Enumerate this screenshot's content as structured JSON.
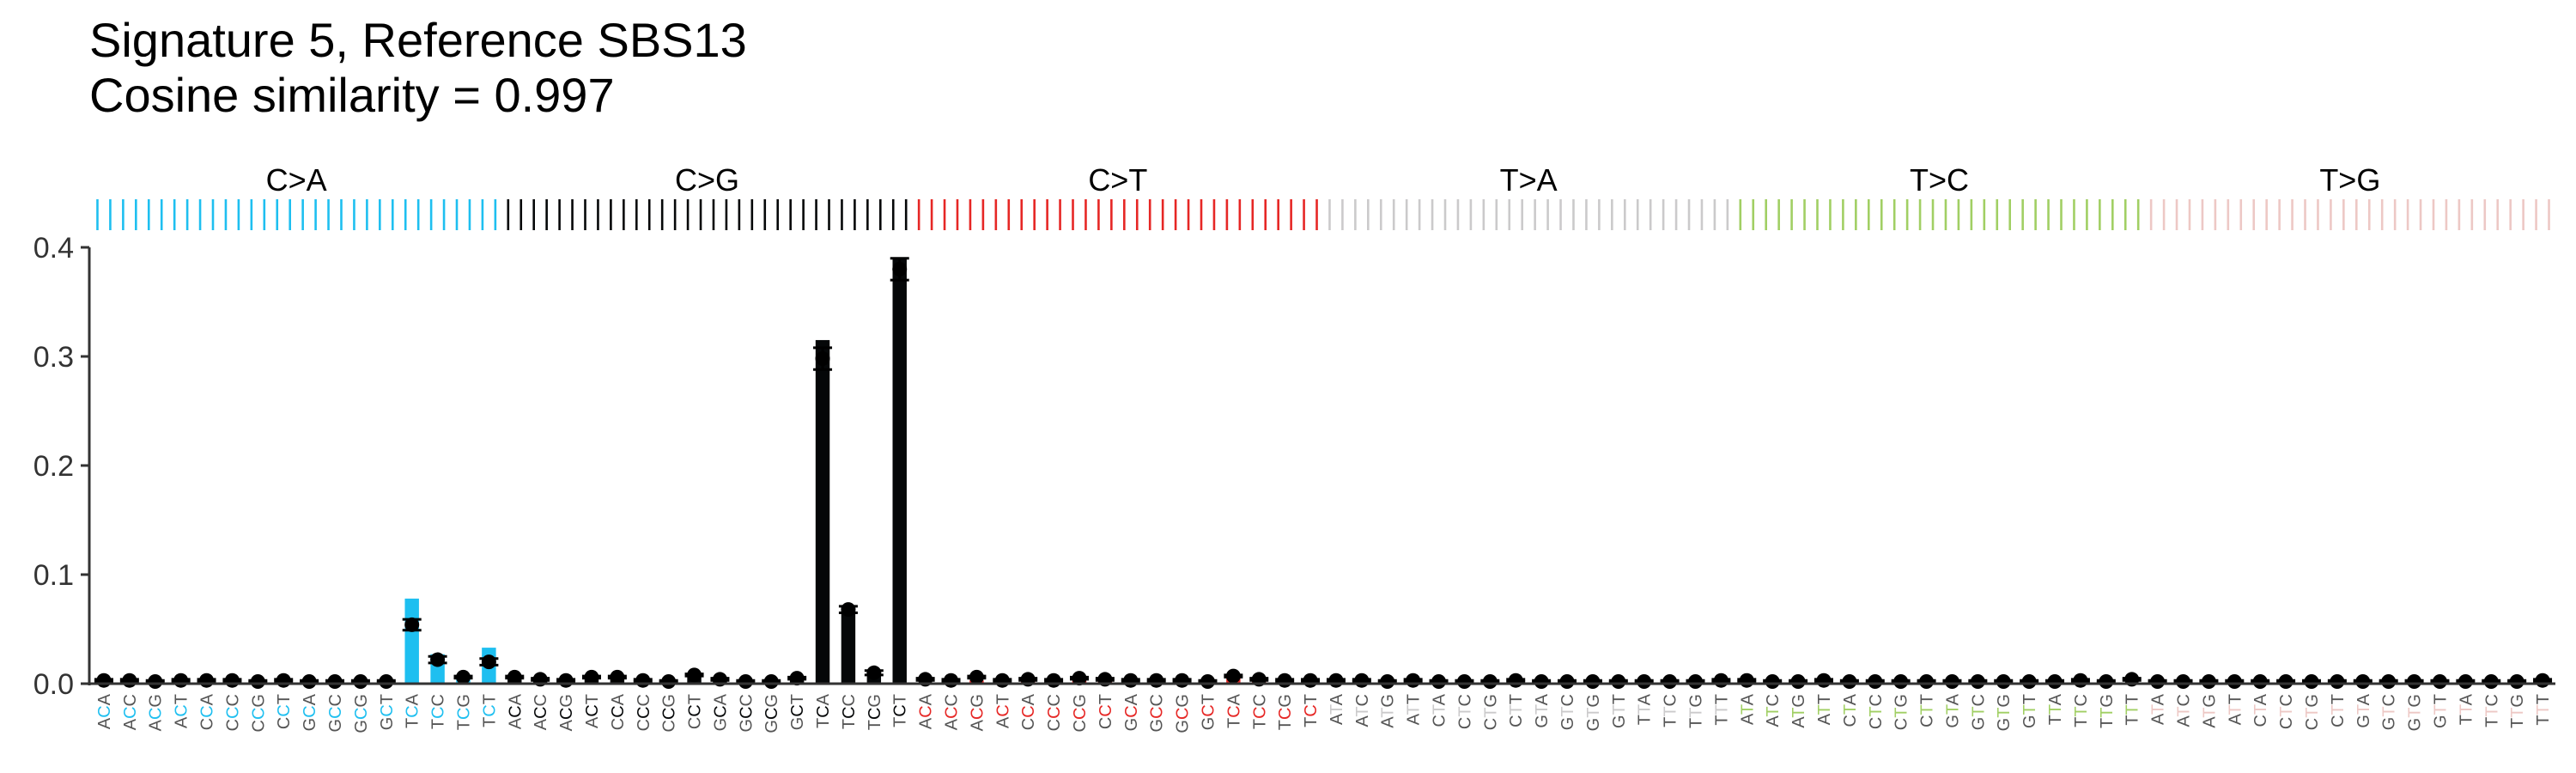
{
  "chart_data": {
    "type": "bar",
    "title": "Signature 5, Reference SBS13",
    "subtitle": "Cosine similarity = 0.997",
    "xlabel": "",
    "ylabel": "",
    "ylim": [
      0,
      0.4
    ],
    "yticks": [
      "0.0",
      "0.1",
      "0.2",
      "0.3",
      "0.4"
    ],
    "ytick_values": [
      0,
      0.1,
      0.2,
      0.3,
      0.4
    ],
    "classes": [
      {
        "label": "C>A",
        "color": "#1ebff0"
      },
      {
        "label": "C>G",
        "color": "#050708"
      },
      {
        "label": "C>T",
        "color": "#e62725"
      },
      {
        "label": "T>A",
        "color": "#cbcacb"
      },
      {
        "label": "T>C",
        "color": "#a1cf64"
      },
      {
        "label": "T>G",
        "color": "#edc8c5"
      }
    ],
    "contexts_C": [
      "ACA",
      "ACC",
      "ACG",
      "ACT",
      "CCA",
      "CCC",
      "CCG",
      "CCT",
      "GCA",
      "GCC",
      "GCG",
      "GCT",
      "TCA",
      "TCC",
      "TCG",
      "TCT"
    ],
    "contexts_T": [
      "ATA",
      "ATC",
      "ATG",
      "ATT",
      "CTA",
      "CTC",
      "CTG",
      "CTT",
      "GTA",
      "GTC",
      "GTG",
      "GTT",
      "TTA",
      "TTC",
      "TTG",
      "TTT"
    ],
    "series": [
      {
        "kind": "reference-bars",
        "values": [
          0.001,
          0.001,
          0.001,
          0.001,
          0.001,
          0.001,
          0.001,
          0.001,
          0.001,
          0.001,
          0.001,
          0.001,
          0.078,
          0.027,
          0.005,
          0.033,
          0.004,
          0.002,
          0.001,
          0.004,
          0.005,
          0.001,
          0.001,
          0.007,
          0.002,
          0.001,
          0.001,
          0.003,
          0.315,
          0.07,
          0.008,
          0.39,
          0.001,
          0.001,
          0.003,
          0.001,
          0.002,
          0.001,
          0.003,
          0.002,
          0.001,
          0.001,
          0.001,
          0.001,
          0.005,
          0.002,
          0.001,
          0.001,
          0.001,
          0.001,
          0.001,
          0.001,
          0.001,
          0.001,
          0.001,
          0.001,
          0.001,
          0.001,
          0.001,
          0.001,
          0.001,
          0.001,
          0.001,
          0.001,
          0.001,
          0.001,
          0.001,
          0.001,
          0.001,
          0.001,
          0.001,
          0.001,
          0.001,
          0.001,
          0.001,
          0.001,
          0.001,
          0.001,
          0.001,
          0.001,
          0.001,
          0.001,
          0.001,
          0.001,
          0.001,
          0.001,
          0.001,
          0.001,
          0.001,
          0.001,
          0.001,
          0.001,
          0.001,
          0.001,
          0.001,
          0.001
        ]
      },
      {
        "kind": "estimate-points",
        "values": [
          0.003,
          0.003,
          0.002,
          0.003,
          0.003,
          0.003,
          0.002,
          0.003,
          0.002,
          0.002,
          0.002,
          0.002,
          0.054,
          0.022,
          0.006,
          0.02,
          0.006,
          0.004,
          0.003,
          0.006,
          0.006,
          0.003,
          0.002,
          0.008,
          0.004,
          0.002,
          0.002,
          0.005,
          0.298,
          0.068,
          0.01,
          0.38,
          0.004,
          0.003,
          0.006,
          0.003,
          0.004,
          0.003,
          0.005,
          0.004,
          0.003,
          0.003,
          0.003,
          0.002,
          0.007,
          0.004,
          0.003,
          0.003,
          0.003,
          0.003,
          0.002,
          0.003,
          0.002,
          0.002,
          0.002,
          0.003,
          0.002,
          0.002,
          0.002,
          0.002,
          0.002,
          0.002,
          0.002,
          0.003,
          0.003,
          0.002,
          0.002,
          0.003,
          0.002,
          0.002,
          0.002,
          0.002,
          0.002,
          0.002,
          0.002,
          0.002,
          0.002,
          0.003,
          0.002,
          0.004,
          0.002,
          0.002,
          0.002,
          0.002,
          0.002,
          0.002,
          0.002,
          0.002,
          0.002,
          0.002,
          0.002,
          0.002,
          0.002,
          0.002,
          0.002,
          0.003
        ],
        "error": [
          0.001,
          0.001,
          0.001,
          0.001,
          0.001,
          0.001,
          0.001,
          0.001,
          0.001,
          0.001,
          0.001,
          0.001,
          0.005,
          0.003,
          0.001,
          0.003,
          0.001,
          0.001,
          0.001,
          0.001,
          0.001,
          0.001,
          0.001,
          0.001,
          0.001,
          0.001,
          0.001,
          0.001,
          0.01,
          0.003,
          0.002,
          0.01,
          0.001,
          0.001,
          0.001,
          0.001,
          0.001,
          0.001,
          0.001,
          0.001,
          0.001,
          0.001,
          0.001,
          0.001,
          0.001,
          0.001,
          0.001,
          0.001,
          0.001,
          0.001,
          0.001,
          0.001,
          0.001,
          0.001,
          0.001,
          0.001,
          0.001,
          0.001,
          0.001,
          0.001,
          0.001,
          0.001,
          0.001,
          0.001,
          0.001,
          0.001,
          0.001,
          0.001,
          0.001,
          0.001,
          0.001,
          0.001,
          0.001,
          0.001,
          0.001,
          0.001,
          0.001,
          0.001,
          0.001,
          0.001,
          0.001,
          0.001,
          0.001,
          0.001,
          0.001,
          0.001,
          0.001,
          0.001,
          0.001,
          0.001,
          0.001,
          0.001,
          0.001,
          0.001,
          0.001,
          0.001
        ]
      }
    ]
  }
}
